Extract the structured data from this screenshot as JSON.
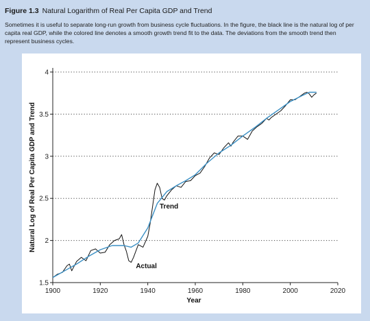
{
  "figure": {
    "number": "Figure 1.3",
    "title": "Natural Logarithm of Real Per Capita GDP and Trend",
    "caption": "Sometimes it is useful to separate long-run growth from business cycle fluctuations. In the figure, the black line is the natural log of per capita real GDP, while the colored line denotes a smooth growth trend fit to the data. The deviations from the smooth trend then represent business cycles."
  },
  "colors": {
    "background": "#c9d9ee",
    "actual": "#111111",
    "trend": "#3a8fc4",
    "grid": "#444444"
  },
  "chart_data": {
    "type": "line",
    "xlabel": "Year",
    "ylabel": "Natural Log of Real Per Capita GDP and Trend",
    "xlim": [
      1900,
      2020
    ],
    "ylim": [
      1.5,
      4
    ],
    "xticks": [
      1900,
      1920,
      1940,
      1960,
      1980,
      2000,
      2020
    ],
    "yticks": [
      1.5,
      2,
      2.5,
      3,
      3.5,
      4
    ],
    "grid": "horizontal dotted",
    "annotations": [
      {
        "text": "Trend",
        "x": 1945,
        "y": 2.38
      },
      {
        "text": "Actual",
        "x": 1935,
        "y": 1.67
      }
    ],
    "series": [
      {
        "name": "Actual",
        "x": [
          1900,
          1902,
          1904,
          1906,
          1907,
          1908,
          1910,
          1912,
          1914,
          1916,
          1918,
          1920,
          1922,
          1924,
          1926,
          1928,
          1929,
          1930,
          1931,
          1932,
          1933,
          1934,
          1936,
          1938,
          1940,
          1941,
          1942,
          1943,
          1944,
          1945,
          1946,
          1947,
          1948,
          1950,
          1952,
          1954,
          1956,
          1958,
          1960,
          1962,
          1964,
          1966,
          1968,
          1970,
          1972,
          1974,
          1975,
          1976,
          1978,
          1980,
          1982,
          1984,
          1986,
          1988,
          1990,
          1991,
          1992,
          1994,
          1996,
          1998,
          2000,
          2002,
          2004,
          2006,
          2007,
          2008,
          2009,
          2010,
          2011
        ],
        "y": [
          1.56,
          1.6,
          1.62,
          1.7,
          1.72,
          1.64,
          1.75,
          1.8,
          1.76,
          1.88,
          1.9,
          1.85,
          1.86,
          1.95,
          2.0,
          2.02,
          2.07,
          1.95,
          1.87,
          1.76,
          1.74,
          1.8,
          1.95,
          1.92,
          2.05,
          2.2,
          2.4,
          2.6,
          2.68,
          2.63,
          2.5,
          2.48,
          2.53,
          2.6,
          2.65,
          2.63,
          2.7,
          2.71,
          2.77,
          2.8,
          2.88,
          2.98,
          3.04,
          3.02,
          3.1,
          3.16,
          3.12,
          3.17,
          3.24,
          3.24,
          3.2,
          3.3,
          3.35,
          3.39,
          3.45,
          3.43,
          3.46,
          3.5,
          3.54,
          3.6,
          3.67,
          3.67,
          3.71,
          3.75,
          3.76,
          3.74,
          3.7,
          3.73,
          3.75
        ]
      },
      {
        "name": "Trend",
        "x": [
          1900,
          1905,
          1910,
          1915,
          1920,
          1925,
          1930,
          1933,
          1936,
          1940,
          1944,
          1948,
          1952,
          1956,
          1960,
          1965,
          1970,
          1975,
          1980,
          1985,
          1990,
          1995,
          2000,
          2005,
          2008,
          2011
        ],
        "y": [
          1.56,
          1.64,
          1.72,
          1.81,
          1.89,
          1.94,
          1.94,
          1.92,
          1.97,
          2.15,
          2.44,
          2.58,
          2.65,
          2.71,
          2.78,
          2.92,
          3.04,
          3.13,
          3.24,
          3.34,
          3.45,
          3.55,
          3.65,
          3.72,
          3.76,
          3.76
        ]
      }
    ]
  }
}
